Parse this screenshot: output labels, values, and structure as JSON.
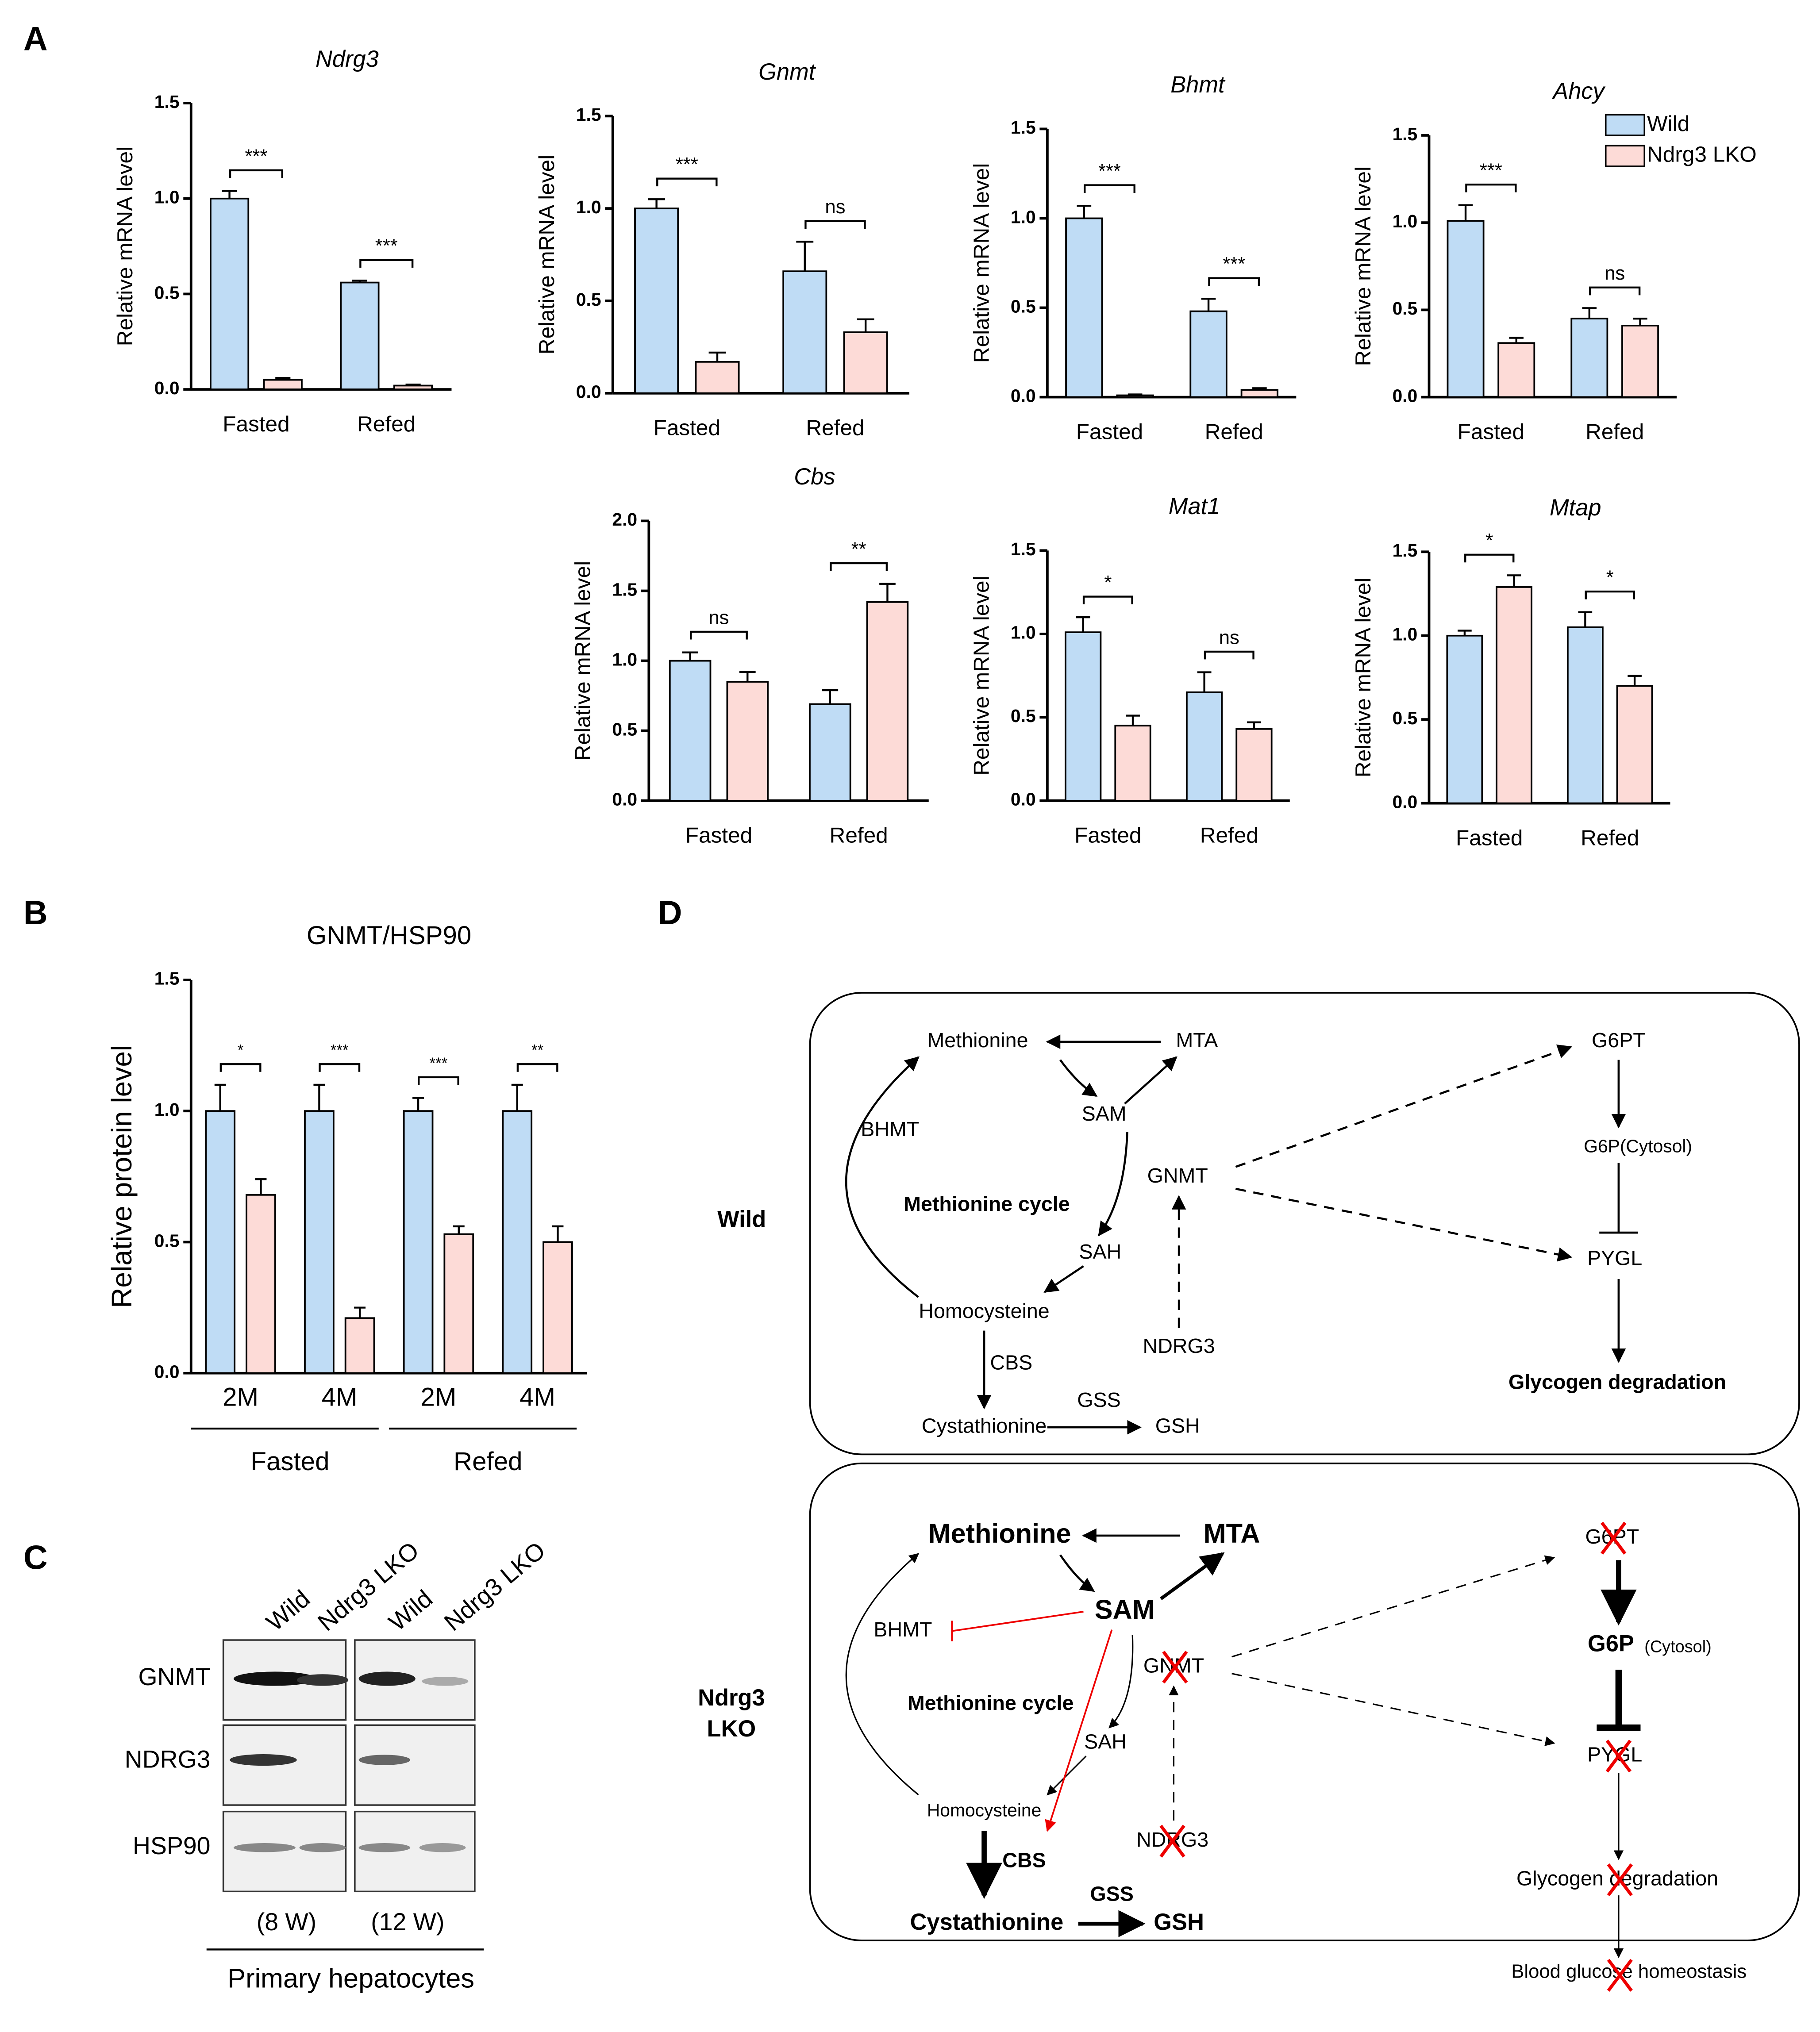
{
  "panels": [
    "A",
    "B",
    "C",
    "D"
  ],
  "chart_data": [
    {
      "type": "bar",
      "title": "Ndrg3",
      "ylabel": "Relative mRNA level",
      "categories": [
        "Fasted",
        "Refed"
      ],
      "series": [
        {
          "color": "#bfdcf5",
          "values": [
            1.0,
            0.56
          ],
          "errors": [
            0.04,
            0.01
          ]
        },
        {
          "color": "#fddbd7",
          "values": [
            0.05,
            0.02
          ],
          "errors": [
            0.01,
            0.005
          ]
        }
      ],
      "significance": [
        "***",
        "***"
      ],
      "ylim": [
        0,
        1.5
      ],
      "yticks": [
        {
          "value": 0,
          "label": "0.0"
        },
        0.5,
        {
          "value": 1,
          "label": "1.0"
        },
        {
          "value": 1.5,
          "label": "1.5"
        }
      ]
    },
    {
      "type": "bar",
      "title": "Gnmt",
      "ylabel": "Relative mRNA level",
      "categories": [
        "Fasted",
        "Refed"
      ],
      "series": [
        {
          "color": "#bfdcf5",
          "values": [
            1.0,
            0.66
          ],
          "errors": [
            0.05,
            0.16
          ]
        },
        {
          "color": "#fddbd7",
          "values": [
            0.17,
            0.33
          ],
          "errors": [
            0.05,
            0.07
          ]
        }
      ],
      "significance": [
        "***",
        "ns"
      ],
      "ylim": [
        0,
        1.5
      ],
      "yticks": [
        {
          "value": 0,
          "label": "0.0"
        },
        0.5,
        {
          "value": 1,
          "label": "1.0"
        },
        {
          "value": 1.5,
          "label": "1.5"
        }
      ]
    },
    {
      "type": "bar",
      "title": "Bhmt",
      "ylabel": "Relative mRNA level",
      "categories": [
        "Fasted",
        "Refed"
      ],
      "series": [
        {
          "color": "#bfdcf5",
          "values": [
            1.0,
            0.48
          ],
          "errors": [
            0.07,
            0.07
          ]
        },
        {
          "color": "#fddbd7",
          "values": [
            0.01,
            0.04
          ],
          "errors": [
            0.005,
            0.01
          ]
        }
      ],
      "significance": [
        "***",
        "***"
      ],
      "ylim": [
        0,
        1.5
      ],
      "yticks": [
        {
          "value": 0,
          "label": "0.0"
        },
        0.5,
        {
          "value": 1,
          "label": "1.0"
        },
        {
          "value": 1.5,
          "label": "1.5"
        }
      ]
    },
    {
      "type": "bar",
      "title": "Ahcy",
      "ylabel": "Relative mRNA level",
      "categories": [
        "Fasted",
        "Refed"
      ],
      "legend": "top-right",
      "series": [
        {
          "name": "Wild",
          "color": "#bfdcf5",
          "values": [
            1.01,
            0.45
          ],
          "errors": [
            0.09,
            0.06
          ]
        },
        {
          "name": "Ndrg3 LKO",
          "color": "#fddbd7",
          "values": [
            0.31,
            0.41
          ],
          "errors": [
            0.03,
            0.04
          ]
        }
      ],
      "significance": [
        "***",
        "ns"
      ],
      "ylim": [
        0,
        1.5
      ],
      "yticks": [
        {
          "value": 0,
          "label": "0.0"
        },
        0.5,
        {
          "value": 1,
          "label": "1.0"
        },
        {
          "value": 1.5,
          "label": "1.5"
        }
      ]
    },
    {
      "type": "bar",
      "title": "Cbs",
      "ylabel": "Relative mRNA level",
      "categories": [
        "Fasted",
        "Refed"
      ],
      "series": [
        {
          "color": "#bfdcf5",
          "values": [
            1.0,
            0.69
          ],
          "errors": [
            0.06,
            0.1
          ]
        },
        {
          "color": "#fddbd7",
          "values": [
            0.85,
            1.42
          ],
          "errors": [
            0.07,
            0.13
          ]
        }
      ],
      "significance": [
        "ns",
        "**"
      ],
      "ylim": [
        0,
        2
      ],
      "yticks": [
        {
          "value": 0,
          "label": "0.0"
        },
        0.5,
        {
          "value": 1,
          "label": "1.0"
        },
        1.5,
        {
          "value": 2,
          "label": "2.0"
        }
      ]
    },
    {
      "type": "bar",
      "title": "Mat1",
      "ylabel": "Relative mRNA level",
      "categories": [
        "Fasted",
        "Refed"
      ],
      "series": [
        {
          "color": "#bfdcf5",
          "values": [
            1.01,
            0.65
          ],
          "errors": [
            0.09,
            0.12
          ]
        },
        {
          "color": "#fddbd7",
          "values": [
            0.45,
            0.43
          ],
          "errors": [
            0.06,
            0.04
          ]
        }
      ],
      "significance": [
        "*",
        "ns"
      ],
      "ylim": [
        0,
        1.5
      ],
      "yticks": [
        {
          "value": 0,
          "label": "0.0"
        },
        0.5,
        {
          "value": 1,
          "label": "1.0"
        },
        {
          "value": 1.5,
          "label": "1.5"
        }
      ]
    },
    {
      "type": "bar",
      "title": "Mtap",
      "ylabel": "Relative mRNA level",
      "categories": [
        "Fasted",
        "Refed"
      ],
      "series": [
        {
          "color": "#bfdcf5",
          "values": [
            1.0,
            1.05
          ],
          "errors": [
            0.03,
            0.09
          ]
        },
        {
          "color": "#fddbd7",
          "values": [
            1.29,
            0.7
          ],
          "errors": [
            0.07,
            0.06
          ]
        }
      ],
      "significance": [
        "*",
        "*"
      ],
      "ylim": [
        0,
        1.5
      ],
      "yticks": [
        {
          "value": 0,
          "label": "0.0"
        },
        0.5,
        {
          "value": 1,
          "label": "1.0"
        },
        {
          "value": 1.5,
          "label": "1.5"
        }
      ]
    },
    {
      "type": "bar",
      "title": "GNMT/HSP90",
      "ylabel": "Relative protein level",
      "categories": [
        "2M",
        "4M",
        "2M",
        "4M"
      ],
      "groups": [
        "Fasted",
        "Refed"
      ],
      "series": [
        {
          "color": "#bfdcf5",
          "values": [
            1.0,
            1.0,
            1.0,
            1.0
          ],
          "errors": [
            0.1,
            0.1,
            0.05,
            0.1
          ]
        },
        {
          "color": "#fddbd7",
          "values": [
            0.68,
            0.21,
            0.53,
            0.5
          ],
          "errors": [
            0.06,
            0.04,
            0.03,
            0.06
          ]
        }
      ],
      "significance": [
        "*",
        "***",
        "***",
        "**"
      ],
      "ylim": [
        0,
        1.5
      ],
      "yticks": [
        {
          "value": 0,
          "label": "0.0"
        },
        0.5,
        {
          "value": 1,
          "label": "1.0"
        },
        {
          "value": 1.5,
          "label": "1.5"
        }
      ]
    }
  ],
  "blot": {
    "lanes": [
      "Wild",
      "Ndrg3 LKO",
      "Wild",
      "Ndrg3 LKO"
    ],
    "rows": [
      "GNMT",
      "NDRG3",
      "HSP90"
    ],
    "ages": [
      "(8 W)",
      "(12 W)"
    ],
    "caption": "Primary hepatocytes"
  },
  "diagram": {
    "wild": {
      "label": "Wild",
      "nodes": [
        "Methionine",
        "MTA",
        "SAM",
        "BHMT",
        "GNMT",
        "Methionine cycle",
        "SAH",
        "Homocysteine",
        "NDRG3",
        "CBS",
        "GSS",
        "Cystathionine",
        "GSH",
        "G6PT",
        "G6P(Cytosol)",
        "PYGL",
        "Glycogen degradation"
      ]
    },
    "lko": {
      "label": [
        "Ndrg3",
        "LKO"
      ],
      "nodes": [
        "Methionine",
        "MTA",
        "SAM",
        "BHMT",
        "GNMT",
        "Methionine cycle",
        "SAH",
        "Homocysteine",
        "NDRG3",
        "CBS",
        "GSS",
        "Cystathionine",
        "GSH",
        "G6PT",
        "G6P",
        "(Cytosol)",
        "PYGL",
        "Glycogen degradation",
        "Blood glucose homeostasis"
      ]
    }
  }
}
